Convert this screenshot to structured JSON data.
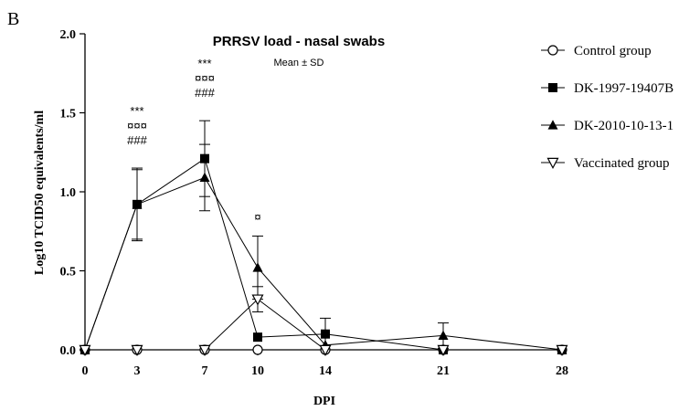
{
  "panel_label": "B",
  "chart_data": {
    "type": "line",
    "title": "PRRSV load - nasal swabs",
    "subtitle": "Mean ± SD",
    "xlabel": "DPI",
    "ylabel": "Log10 TCID50 equivalents/ml",
    "x": [
      0,
      3,
      7,
      10,
      14,
      21,
      28
    ],
    "x_tick_labels": [
      "0",
      "3",
      "7",
      "10",
      "14",
      "21",
      "28"
    ],
    "ylim": [
      0,
      2.0
    ],
    "y_ticks": [
      0,
      0.5,
      1.0,
      1.5,
      2.0
    ],
    "y_tick_labels": [
      "0.0",
      "0.5",
      "1.0",
      "1.5",
      "2.0"
    ],
    "grid": false,
    "legend_position": "right",
    "series": [
      {
        "name": "Control group",
        "marker": "open-circle",
        "x": [
          0,
          3,
          7,
          10,
          14,
          21,
          28
        ],
        "values": [
          0,
          0,
          0,
          0,
          0,
          0,
          0
        ],
        "error": [
          0,
          0,
          0,
          0,
          0,
          0,
          0
        ]
      },
      {
        "name": "DK-1997-19407B",
        "marker": "filled-square",
        "x": [
          0,
          3,
          7,
          10,
          14,
          21,
          28
        ],
        "values": [
          0,
          0.92,
          1.21,
          0.08,
          0.1,
          0,
          0
        ],
        "error": [
          0,
          0.22,
          0.24,
          0,
          0.1,
          0,
          0
        ]
      },
      {
        "name": "DK-2010-10-13-1",
        "marker": "filled-triangle",
        "x": [
          0,
          3,
          7,
          10,
          14,
          21,
          28
        ],
        "values": [
          0,
          0.92,
          1.09,
          0.52,
          0.03,
          0.09,
          0
        ],
        "error": [
          0,
          0.23,
          0.21,
          0.2,
          0,
          0.08,
          0
        ]
      },
      {
        "name": "Vaccinated group",
        "marker": "open-triangle-down",
        "x": [
          0,
          3,
          7,
          10,
          14,
          21,
          28
        ],
        "values": [
          0,
          0,
          0,
          0.32,
          0,
          0,
          0
        ],
        "error": [
          0,
          0,
          0,
          0.08,
          0,
          0,
          0
        ]
      }
    ],
    "annotations": [
      {
        "x": 3,
        "lines": [
          "***",
          "¤¤¤",
          "###"
        ]
      },
      {
        "x": 7,
        "lines": [
          "***",
          "¤¤¤",
          "###"
        ]
      },
      {
        "x": 10,
        "lines": [
          "¤"
        ]
      }
    ]
  }
}
